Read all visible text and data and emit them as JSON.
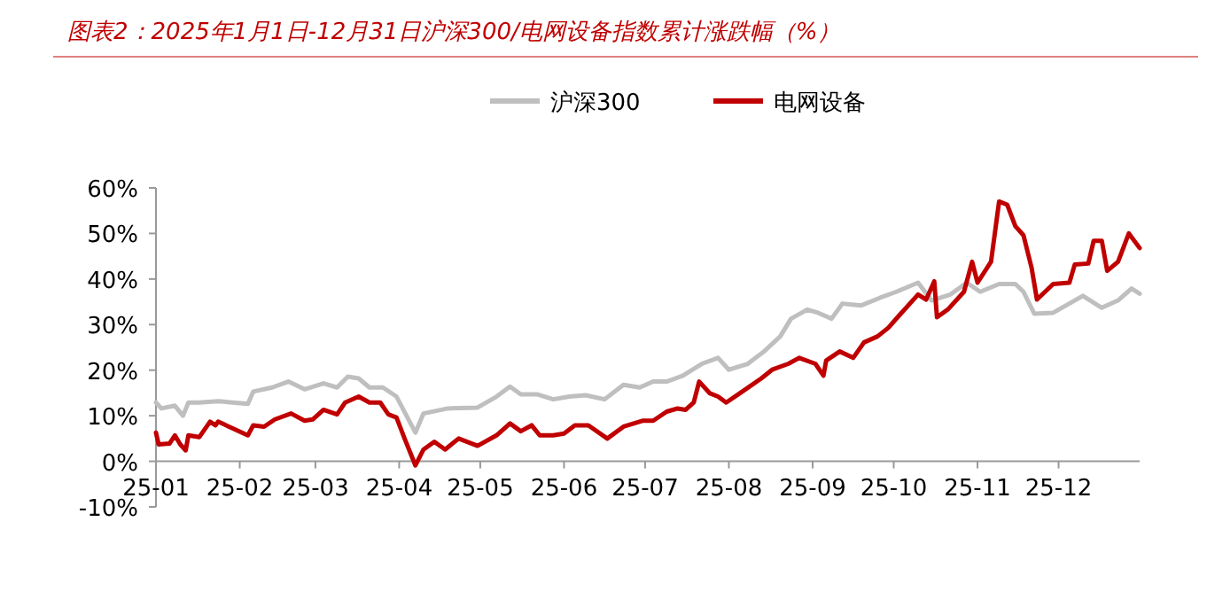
{
  "chart_data": {
    "type": "line",
    "title": "图表2：2025年1月1日-12月31日沪深300/电网设备指数累计涨跌幅（%）",
    "legend": "top",
    "grid": false,
    "line_style": "solid",
    "marker": "none",
    "xlim": [
      "2025-01-01",
      "2025-12-31"
    ],
    "xticks": [
      {
        "value": "2025-01-01",
        "label": "25-01"
      },
      {
        "value": "2025-02-01",
        "label": "25-02"
      },
      {
        "value": "2025-03-01",
        "label": "25-03"
      },
      {
        "value": "2025-04-01",
        "label": "25-04"
      },
      {
        "value": "2025-05-01",
        "label": "25-05"
      },
      {
        "value": "2025-06-01",
        "label": "25-06"
      },
      {
        "value": "2025-07-01",
        "label": "25-07"
      },
      {
        "value": "2025-08-01",
        "label": "25-08"
      },
      {
        "value": "2025-09-01",
        "label": "25-09"
      },
      {
        "value": "2025-10-01",
        "label": "25-10"
      },
      {
        "value": "2025-11-01",
        "label": "25-11"
      },
      {
        "value": "2025-12-01",
        "label": "25-12"
      }
    ],
    "ylim": [
      -10,
      60
    ],
    "yticks": [
      {
        "value": -10,
        "label": "-10%"
      },
      {
        "value": 0,
        "label": "0%"
      },
      {
        "value": 10,
        "label": "10%"
      },
      {
        "value": 20,
        "label": "20%"
      },
      {
        "value": 30,
        "label": "30%"
      },
      {
        "value": 40,
        "label": "40%"
      },
      {
        "value": 50,
        "label": "50%"
      },
      {
        "value": 60,
        "label": "60%"
      }
    ],
    "series": [
      {
        "name": "沪深300",
        "color": "#bfbfbf",
        "x": [
          "2025-01-01",
          "2025-01-03",
          "2025-01-08",
          "2025-01-11",
          "2025-01-13",
          "2025-01-17",
          "2025-01-24",
          "2025-02-04",
          "2025-02-06",
          "2025-02-13",
          "2025-02-19",
          "2025-02-25",
          "2025-03-04",
          "2025-03-09",
          "2025-03-13",
          "2025-03-17",
          "2025-03-21",
          "2025-03-26",
          "2025-03-31",
          "2025-04-07",
          "2025-04-10",
          "2025-04-19",
          "2025-04-30",
          "2025-05-07",
          "2025-05-12",
          "2025-05-16",
          "2025-05-22",
          "2025-05-28",
          "2025-06-03",
          "2025-06-09",
          "2025-06-16",
          "2025-06-23",
          "2025-06-29",
          "2025-07-04",
          "2025-07-09",
          "2025-07-15",
          "2025-07-22",
          "2025-07-28",
          "2025-08-01",
          "2025-08-08",
          "2025-08-14",
          "2025-08-20",
          "2025-08-24",
          "2025-08-30",
          "2025-09-03",
          "2025-09-08",
          "2025-09-12",
          "2025-09-19",
          "2025-09-26",
          "2025-10-02",
          "2025-10-10",
          "2025-10-15",
          "2025-10-22",
          "2025-10-28",
          "2025-11-02",
          "2025-11-09",
          "2025-11-15",
          "2025-11-18",
          "2025-11-22",
          "2025-11-29",
          "2025-12-10",
          "2025-12-17",
          "2025-12-23",
          "2025-12-28",
          "2025-12-31"
        ],
        "values": [
          12.9,
          11.6,
          12.2,
          10,
          12.9,
          12.9,
          13.2,
          12.6,
          15.3,
          16.2,
          17.5,
          15.8,
          17.1,
          16.2,
          18.6,
          18.2,
          16.2,
          16.2,
          14.2,
          6.3,
          10.5,
          11.6,
          11.8,
          14.2,
          16.4,
          14.7,
          14.7,
          13.6,
          14.2,
          14.5,
          13.6,
          16.8,
          16.2,
          17.5,
          17.5,
          18.8,
          21.4,
          22.7,
          20.1,
          21.4,
          24.1,
          27.4,
          31.3,
          33.3,
          32.6,
          31.3,
          34.6,
          34.2,
          35.9,
          37.2,
          39.2,
          35.3,
          36.6,
          39.2,
          37.2,
          38.9,
          38.9,
          37.2,
          32.4,
          32.6,
          36.3,
          33.7,
          35.3,
          37.9,
          36.8
        ]
      },
      {
        "name": "电网设备",
        "color": "#c00000",
        "x": [
          "2025-01-01",
          "2025-01-02",
          "2025-01-06",
          "2025-01-08",
          "2025-01-10",
          "2025-01-12",
          "2025-01-13",
          "2025-01-17",
          "2025-01-21",
          "2025-01-23",
          "2025-01-24",
          "2025-02-04",
          "2025-02-06",
          "2025-02-10",
          "2025-02-14",
          "2025-02-20",
          "2025-02-25",
          "2025-02-28",
          "2025-03-04",
          "2025-03-09",
          "2025-03-12",
          "2025-03-17",
          "2025-03-21",
          "2025-03-25",
          "2025-03-28",
          "2025-03-31",
          "2025-04-03",
          "2025-04-07",
          "2025-04-10",
          "2025-04-14",
          "2025-04-18",
          "2025-04-23",
          "2025-04-30",
          "2025-05-07",
          "2025-05-12",
          "2025-05-16",
          "2025-05-20",
          "2025-05-23",
          "2025-05-28",
          "2025-06-01",
          "2025-06-05",
          "2025-06-10",
          "2025-06-17",
          "2025-06-23",
          "2025-06-30",
          "2025-07-04",
          "2025-07-09",
          "2025-07-13",
          "2025-07-16",
          "2025-07-19",
          "2025-07-21",
          "2025-07-25",
          "2025-07-28",
          "2025-07-31",
          "2025-08-05",
          "2025-08-13",
          "2025-08-17",
          "2025-08-23",
          "2025-08-27",
          "2025-09-02",
          "2025-09-05",
          "2025-09-06",
          "2025-09-11",
          "2025-09-16",
          "2025-09-20",
          "2025-09-25",
          "2025-09-29",
          "2025-10-03",
          "2025-10-10",
          "2025-10-13",
          "2025-10-16",
          "2025-10-17",
          "2025-10-21",
          "2025-10-27",
          "2025-10-30",
          "2025-11-01",
          "2025-11-06",
          "2025-11-09",
          "2025-11-12",
          "2025-11-15",
          "2025-11-18",
          "2025-11-21",
          "2025-11-23",
          "2025-11-29",
          "2025-12-05",
          "2025-12-07",
          "2025-12-12",
          "2025-12-14",
          "2025-12-17",
          "2025-12-19",
          "2025-12-23",
          "2025-12-27",
          "2025-12-31"
        ],
        "values": [
          6.3,
          3.7,
          3.9,
          5.7,
          3.7,
          2.4,
          5.7,
          5.3,
          8.7,
          7.9,
          8.7,
          5.7,
          7.9,
          7.6,
          9.2,
          10.5,
          8.9,
          9.2,
          11.3,
          10.3,
          12.9,
          14.2,
          12.9,
          12.9,
          10.3,
          9.6,
          5,
          -0.9,
          2.6,
          4.3,
          2.6,
          5,
          3.4,
          5.7,
          8.3,
          6.6,
          7.9,
          5.7,
          5.7,
          6.1,
          7.9,
          7.9,
          5,
          7.6,
          8.9,
          8.9,
          10.9,
          11.6,
          11.3,
          12.9,
          17.5,
          14.9,
          14.2,
          12.9,
          14.9,
          18.2,
          20.1,
          21.4,
          22.7,
          21.4,
          18.8,
          22.1,
          24.1,
          22.7,
          26.1,
          27.4,
          29.3,
          32,
          36.6,
          35.5,
          39.5,
          31.6,
          33.3,
          37.2,
          43.8,
          39.2,
          43.8,
          57,
          56.3,
          51.6,
          49.6,
          42.5,
          35.5,
          38.9,
          39.2,
          43.2,
          43.4,
          48.4,
          48.4,
          41.8,
          43.8,
          50,
          46.8
        ]
      }
    ]
  }
}
